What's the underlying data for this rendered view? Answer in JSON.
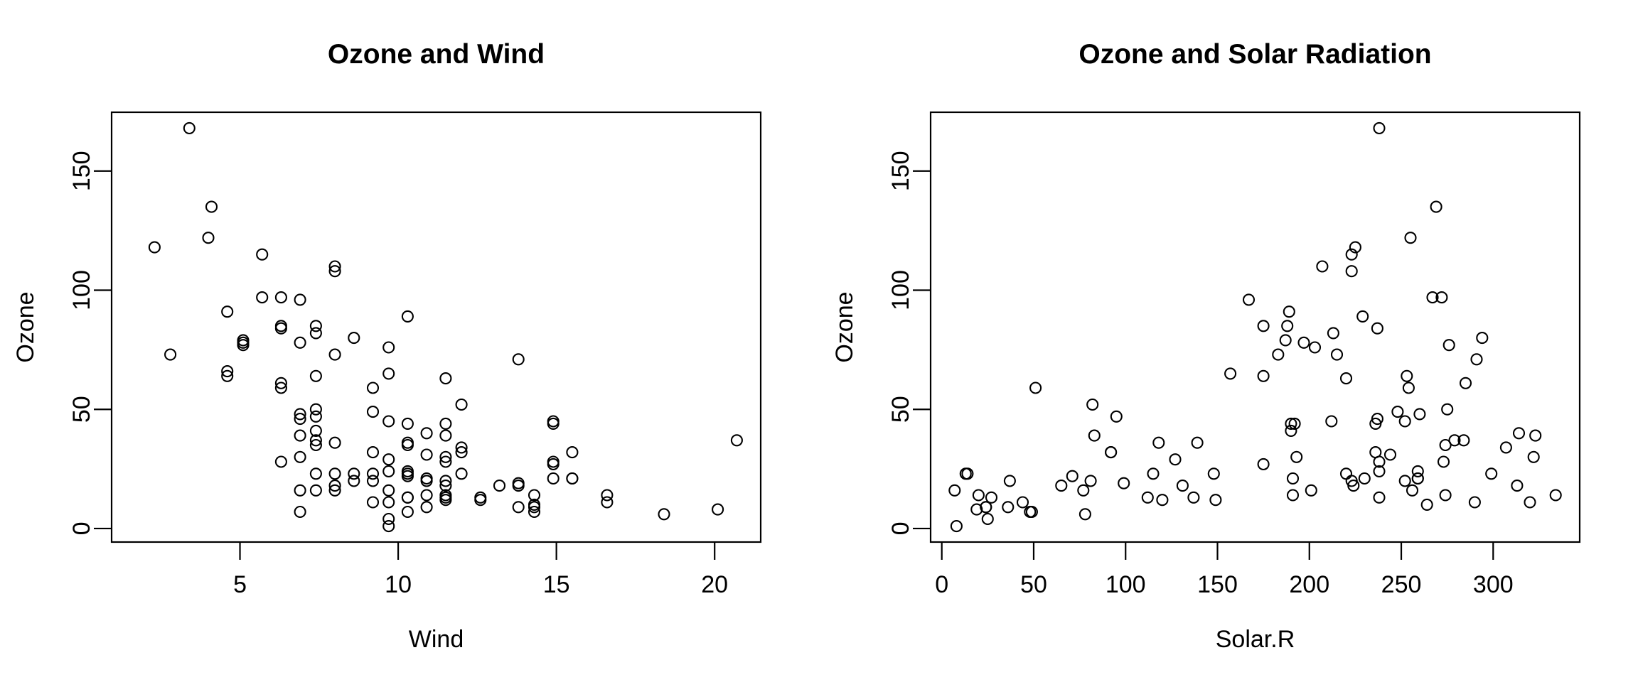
{
  "figure": {
    "background": "#ffffff",
    "foreground": "#000000"
  },
  "style": {
    "marker": "open-circle",
    "marker_radius": 7.5,
    "marker_stroke_width": 2.1,
    "axis_stroke_width": 2.2,
    "tick_length": 25
  },
  "chart_data": [
    {
      "type": "scatter",
      "title": "Ozone and Wind",
      "xlabel": "Wind",
      "ylabel": "Ozone",
      "xlim": [
        0.944,
        21.456
      ],
      "ylim": [
        -5.68,
        174.68
      ],
      "xticks": [
        5,
        10,
        15,
        20
      ],
      "yticks": [
        0,
        50,
        100,
        150
      ],
      "grid": false,
      "legend": null,
      "x": [
        7.4,
        8,
        12.6,
        11.5,
        14.9,
        8.6,
        13.8,
        20.1,
        6.9,
        9.7,
        9.2,
        10.9,
        13.2,
        11.5,
        12,
        18.4,
        11.5,
        9.7,
        9.7,
        16.6,
        9.7,
        12,
        12,
        14.9,
        5.7,
        7.4,
        9.7,
        13.8,
        11.5,
        8,
        14.9,
        20.7,
        9.2,
        11.5,
        10.3,
        4.1,
        9.2,
        9.2,
        4.6,
        10.9,
        5.1,
        6.3,
        5.7,
        7.4,
        14.3,
        14.9,
        14.3,
        6.9,
        10.3,
        6.3,
        5.1,
        11.5,
        6.9,
        8.6,
        8,
        8.6,
        12,
        7.4,
        7.4,
        7.4,
        9.2,
        6.9,
        13.8,
        7.4,
        6.9,
        7.4,
        4.6,
        4,
        10.3,
        8,
        11.5,
        11.5,
        9.7,
        10.3,
        6.3,
        7.4,
        10.9,
        10.3,
        15.5,
        14.3,
        9.7,
        3.4,
        8,
        9.7,
        2.3,
        6.3,
        6.3,
        6.9,
        5.1,
        2.8,
        4.6,
        7.4,
        15.5,
        10.9,
        10.3,
        10.9,
        9.7,
        14.9,
        15.5,
        6.3,
        10.9,
        11.5,
        6.9,
        13.8,
        10.3,
        10.3,
        8,
        12.6,
        9.2,
        10.3,
        10.3,
        16.6,
        6.9,
        14.3,
        8,
        11.5
      ],
      "y": [
        41,
        36,
        12,
        18,
        28,
        23,
        19,
        8,
        7,
        16,
        11,
        14,
        18,
        14,
        34,
        6,
        30,
        11,
        1,
        11,
        4,
        32,
        23,
        45,
        115,
        37,
        29,
        71,
        39,
        23,
        21,
        37,
        20,
        12,
        13,
        135,
        49,
        32,
        64,
        40,
        77,
        97,
        97,
        85,
        10,
        27,
        7,
        48,
        35,
        61,
        79,
        63,
        16,
        80,
        108,
        20,
        52,
        82,
        50,
        64,
        59,
        39,
        9,
        16,
        78,
        35,
        66,
        122,
        89,
        110,
        44,
        28,
        65,
        22,
        59,
        23,
        31,
        44,
        21,
        9,
        45,
        168,
        73,
        76,
        118,
        84,
        85,
        96,
        78,
        73,
        91,
        47,
        32,
        20,
        23,
        21,
        24,
        44,
        21,
        28,
        9,
        13,
        46,
        18,
        13,
        24,
        16,
        13,
        23,
        36,
        7,
        14,
        30,
        14,
        18,
        20
      ]
    },
    {
      "type": "scatter",
      "title": "Ozone and Solar Radiation",
      "xlabel": "Solar.R",
      "ylabel": "Ozone",
      "xlim": [
        -6.08,
        347.08
      ],
      "ylim": [
        -5.68,
        174.68
      ],
      "xticks": [
        0,
        50,
        100,
        150,
        200,
        250,
        300
      ],
      "yticks": [
        0,
        50,
        100,
        150
      ],
      "grid": false,
      "legend": null,
      "x": [
        190,
        118,
        149,
        313,
        299,
        99,
        19,
        256,
        290,
        274,
        65,
        334,
        307,
        78,
        322,
        44,
        8,
        320,
        25,
        92,
        13,
        252,
        223,
        279,
        127,
        291,
        323,
        148,
        191,
        284,
        37,
        120,
        137,
        269,
        248,
        236,
        175,
        314,
        276,
        267,
        272,
        175,
        264,
        175,
        48,
        260,
        274,
        285,
        187,
        220,
        7,
        294,
        223,
        81,
        82,
        213,
        275,
        253,
        254,
        83,
        24,
        77,
        255,
        229,
        207,
        192,
        273,
        157,
        71,
        51,
        115,
        244,
        190,
        259,
        36,
        212,
        238,
        215,
        203,
        225,
        237,
        188,
        167,
        197,
        183,
        189,
        95,
        92,
        252,
        220,
        230,
        259,
        236,
        259,
        238,
        24,
        112,
        237,
        224,
        27,
        238,
        201,
        238,
        14,
        139,
        49,
        20,
        193,
        191,
        131,
        223
      ],
      "y": [
        41,
        36,
        12,
        18,
        23,
        19,
        8,
        16,
        11,
        14,
        18,
        14,
        34,
        6,
        30,
        11,
        1,
        11,
        4,
        32,
        23,
        45,
        115,
        37,
        29,
        71,
        39,
        23,
        21,
        37,
        20,
        12,
        13,
        135,
        49,
        32,
        64,
        40,
        77,
        97,
        97,
        85,
        10,
        27,
        7,
        48,
        35,
        61,
        79,
        63,
        16,
        80,
        108,
        20,
        52,
        82,
        50,
        64,
        59,
        39,
        9,
        16,
        122,
        89,
        110,
        44,
        28,
        65,
        22,
        59,
        23,
        31,
        44,
        21,
        9,
        45,
        168,
        73,
        76,
        118,
        84,
        85,
        96,
        78,
        73,
        91,
        47,
        32,
        20,
        23,
        21,
        24,
        44,
        21,
        28,
        9,
        13,
        46,
        18,
        13,
        24,
        16,
        13,
        23,
        36,
        7,
        14,
        30,
        14,
        18,
        20
      ]
    }
  ]
}
